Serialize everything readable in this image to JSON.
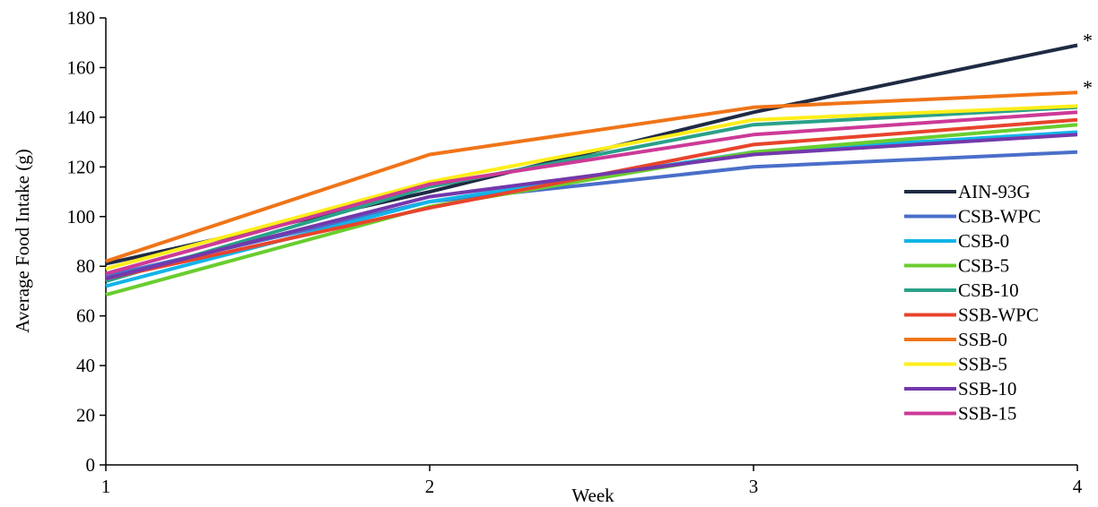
{
  "chart_data": {
    "type": "line",
    "x": [
      1,
      2,
      3,
      4
    ],
    "xlabel": "Week",
    "ylabel": "Average Food Intake (g)",
    "xlim": [
      1,
      4
    ],
    "ylim": [
      0,
      180
    ],
    "y_ticks": [
      0,
      20,
      40,
      60,
      80,
      100,
      120,
      140,
      160,
      180
    ],
    "x_ticks": [
      1,
      2,
      3,
      4
    ],
    "grid": false,
    "legend_position": "right",
    "series": [
      {
        "name": "AIN-93G",
        "color": "#1f2a44",
        "values": [
          81,
          110,
          142,
          169
        ],
        "annotation": "*"
      },
      {
        "name": "CSB-WPC",
        "color": "#4a6fc9",
        "values": [
          76,
          106,
          120,
          126
        ]
      },
      {
        "name": "CSB-0",
        "color": "#12b4e8",
        "values": [
          72,
          106,
          126,
          134
        ]
      },
      {
        "name": "CSB-5",
        "color": "#6acd2e",
        "values": [
          68.5,
          104,
          126,
          137
        ]
      },
      {
        "name": "CSB-10",
        "color": "#2aa189",
        "values": [
          74,
          112,
          137,
          144
        ]
      },
      {
        "name": "SSB-WPC",
        "color": "#e8442c",
        "values": [
          75,
          103.5,
          129,
          139
        ]
      },
      {
        "name": "SSB-0",
        "color": "#f07418",
        "values": [
          82,
          125,
          144,
          150
        ],
        "annotation": "*"
      },
      {
        "name": "SSB-5",
        "color": "#ffee1a",
        "values": [
          79,
          114,
          139,
          144.5
        ]
      },
      {
        "name": "SSB-10",
        "color": "#7338ac",
        "values": [
          75,
          108,
          125,
          133
        ]
      },
      {
        "name": "SSB-15",
        "color": "#cc3a97",
        "values": [
          77,
          113,
          133,
          142
        ]
      }
    ]
  }
}
